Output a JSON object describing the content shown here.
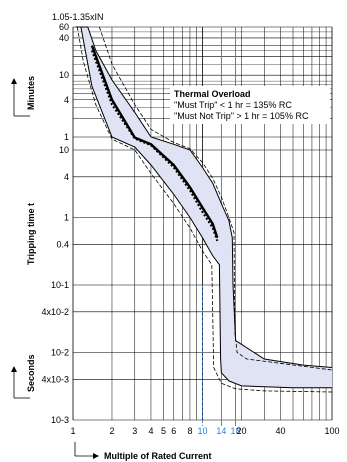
{
  "chart_data": {
    "type": "line",
    "title": "",
    "top_label": "1.05-1.35xIN",
    "xlabel": "Multiple of Rated Current",
    "ylabel": "Tripping time t",
    "minutes_label": "Minutes",
    "seconds_label": "Seconds",
    "x_scale": "log",
    "xlim": [
      1,
      100
    ],
    "x_ticks": [
      {
        "v": 1,
        "label": "1",
        "color": "#000000"
      },
      {
        "v": 2,
        "label": "2",
        "color": "#000000"
      },
      {
        "v": 3,
        "label": "3",
        "color": "#000000"
      },
      {
        "v": 4,
        "label": "4",
        "color": "#000000"
      },
      {
        "v": 5,
        "label": "5",
        "color": "#000000"
      },
      {
        "v": 6,
        "label": "6",
        "color": "#000000"
      },
      {
        "v": 8,
        "label": "8",
        "color": "#000000"
      },
      {
        "v": 10,
        "label": "10",
        "color": "#2a7fd4"
      },
      {
        "v": 14,
        "label": "14",
        "color": "#2a7fd4"
      },
      {
        "v": 18,
        "label": "18",
        "color": "#2a7fd4"
      },
      {
        "v": 20,
        "label": "20",
        "color": "#000000"
      },
      {
        "v": 40,
        "label": "40",
        "color": "#000000"
      },
      {
        "v": 100,
        "label": "100",
        "color": "#000000"
      }
    ],
    "y_ticks_minutes": [
      "60",
      "40",
      "10",
      "4",
      "1"
    ],
    "y_ticks_seconds": [
      "10",
      "4",
      "1",
      "0.4",
      "10-1",
      "4x10-2",
      "10-2",
      "4x10-3",
      "10-3"
    ],
    "annotation": {
      "title": "Thermal Overload",
      "line1": "\"Must Trip\" < 1 hr = 135% RC",
      "line2": "\"Must Not Trip\" > 1 hr = 105% RC"
    },
    "series": [
      {
        "kind": "upper_band",
        "x": [
          1.05,
          1.3,
          1.5,
          2,
          3,
          4,
          6,
          8,
          10,
          12,
          14,
          16,
          17,
          17.2,
          17.5,
          18,
          30,
          60,
          100
        ],
        "y": [
          3600,
          3600,
          1500,
          500,
          150,
          60,
          22,
          10,
          5.5,
          3.2,
          1.6,
          0.9,
          0.5,
          0.1,
          0.05,
          0.015,
          0.008,
          0.0065,
          0.006
        ]
      },
      {
        "kind": "lower_band",
        "x": [
          1.05,
          1.15,
          1.4,
          2,
          3,
          4,
          6,
          8,
          10,
          12,
          13.5,
          13.8,
          14,
          16,
          20,
          50,
          100
        ],
        "y": [
          3600,
          3600,
          400,
          60,
          15,
          6,
          2.2,
          1.0,
          0.5,
          0.27,
          0.2,
          0.008,
          0.005,
          0.0038,
          0.0032,
          0.003,
          0.003
        ]
      },
      {
        "kind": "typical",
        "x": [
          1.4,
          2,
          3,
          4,
          6,
          8,
          10,
          12,
          13
        ],
        "y": [
          1800,
          240,
          55,
          22,
          6,
          2.8,
          1.4,
          0.8,
          0.5
        ]
      },
      {
        "kind": "typical_dotted",
        "x": [
          1.4,
          2,
          3,
          4,
          6,
          8,
          10,
          12,
          13
        ],
        "y": [
          1500,
          200,
          48,
          19,
          5.5,
          2.5,
          1.2,
          0.7,
          0.45
        ]
      },
      {
        "kind": "dashed_outer_upper",
        "x": [
          1.6,
          2,
          3,
          4,
          6,
          8,
          10,
          12,
          14,
          16,
          17.5,
          17.8,
          18.5,
          22,
          100
        ],
        "y": [
          3600,
          900,
          200,
          80,
          28,
          12,
          6.5,
          3.8,
          2.0,
          1.0,
          0.6,
          0.02,
          0.01,
          0.008,
          0.0055
        ]
      },
      {
        "kind": "dashed_outer_lower",
        "x": [
          1.08,
          1.2,
          1.5,
          2,
          3,
          4,
          6,
          8,
          10,
          11.8,
          12.2,
          14,
          18,
          30,
          100
        ],
        "y": [
          3600,
          1000,
          200,
          45,
          10,
          4.5,
          1.6,
          0.7,
          0.32,
          0.2,
          0.006,
          0.0035,
          0.0029,
          0.0027,
          0.0026
        ]
      }
    ],
    "colors": {
      "band_fill": "#dfe3f3",
      "blue_lines": "#2a7fd4",
      "grid": "#000000"
    }
  }
}
